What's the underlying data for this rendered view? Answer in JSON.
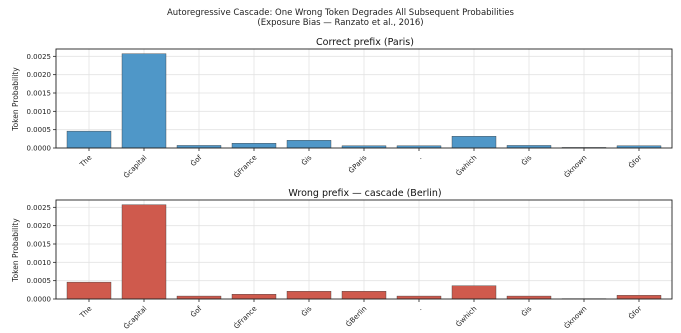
{
  "figure": {
    "suptitle_line1": "Autoregressive Cascade: One Wrong Token Degrades All Subsequent Probabilities",
    "suptitle_line2": "(Exposure Bias — Ranzato et al., 2016)"
  },
  "chart_data": [
    {
      "type": "bar",
      "title": "Correct prefix (Paris)",
      "ylabel": "Token Probability",
      "xlabel": "",
      "categories": [
        "The",
        "Ġcapital",
        "Ġof",
        "ĠFrance",
        "Ġis",
        "ĠParis",
        ".",
        "Ġwhich",
        "Ġis",
        "Ġknown",
        "Ġfor"
      ],
      "values": [
        0.00046,
        0.00257,
        7e-05,
        0.00013,
        0.00021,
        6e-05,
        6e-05,
        0.00032,
        7e-05,
        1.5e-05,
        6e-05
      ],
      "ylim": [
        0,
        0.0027
      ],
      "yticks": [
        "0.0000",
        "0.0005",
        "0.0010",
        "0.0015",
        "0.0020",
        "0.0025"
      ],
      "color": "#4f97c8",
      "grid": true
    },
    {
      "type": "bar",
      "title": "Wrong prefix — cascade (Berlin)",
      "ylabel": "Token Probability",
      "xlabel": "",
      "categories": [
        "The",
        "Ġcapital",
        "Ġof",
        "ĠFrance",
        "Ġis",
        "ĠBerlin",
        ".",
        "Ġwhich",
        "Ġis",
        "Ġknown",
        "Ġfor"
      ],
      "values": [
        0.00046,
        0.00257,
        8e-05,
        0.00013,
        0.00021,
        0.00021,
        8e-05,
        0.00036,
        8e-05,
        1e-05,
        0.0001
      ],
      "ylim": [
        0,
        0.0027
      ],
      "yticks": [
        "0.0000",
        "0.0005",
        "0.0010",
        "0.0015",
        "0.0020",
        "0.0025"
      ],
      "color": "#cf5a4d",
      "grid": true
    }
  ]
}
